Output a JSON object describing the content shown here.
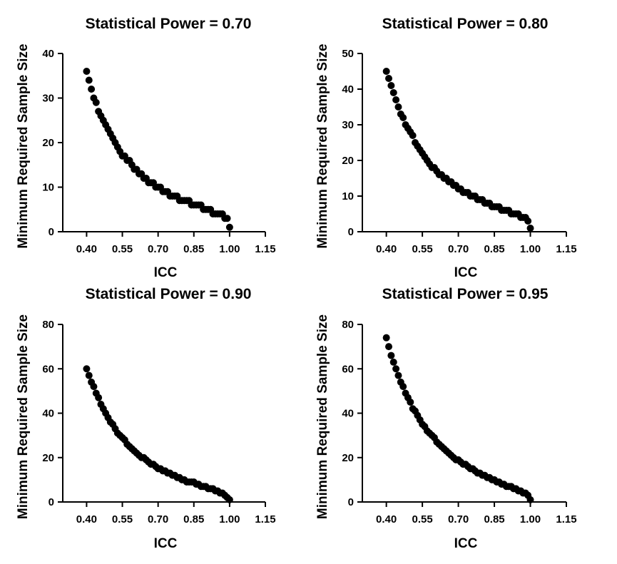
{
  "chart_data": [
    {
      "type": "scatter",
      "title": "Statistical Power = 0.70",
      "xlabel": "ICC",
      "ylabel": "Minimum Required Sample Size",
      "xlim": [
        0.3,
        1.15
      ],
      "ylim": [
        0,
        40
      ],
      "xticks": [
        "0.40",
        "0.55",
        "0.70",
        "0.85",
        "1.00",
        "1.15"
      ],
      "yticks": [
        "0",
        "10",
        "20",
        "30",
        "40"
      ],
      "x": [
        0.4,
        0.41,
        0.42,
        0.43,
        0.44,
        0.45,
        0.46,
        0.47,
        0.48,
        0.49,
        0.5,
        0.51,
        0.52,
        0.53,
        0.54,
        0.55,
        0.56,
        0.57,
        0.58,
        0.59,
        0.6,
        0.61,
        0.62,
        0.63,
        0.64,
        0.65,
        0.66,
        0.67,
        0.68,
        0.69,
        0.7,
        0.71,
        0.72,
        0.73,
        0.74,
        0.75,
        0.76,
        0.77,
        0.78,
        0.79,
        0.8,
        0.81,
        0.82,
        0.83,
        0.84,
        0.85,
        0.86,
        0.87,
        0.88,
        0.89,
        0.9,
        0.91,
        0.92,
        0.93,
        0.94,
        0.95,
        0.96,
        0.97,
        0.98,
        0.99,
        1.0
      ],
      "y": [
        36,
        34,
        32,
        30,
        29,
        27,
        26,
        25,
        24,
        23,
        22,
        21,
        20,
        19,
        18,
        17,
        17,
        16,
        16,
        15,
        14,
        14,
        13,
        13,
        12,
        12,
        11,
        11,
        11,
        10,
        10,
        10,
        9,
        9,
        9,
        8,
        8,
        8,
        8,
        7,
        7,
        7,
        7,
        7,
        6,
        6,
        6,
        6,
        6,
        5,
        5,
        5,
        5,
        4,
        4,
        4,
        4,
        4,
        3,
        3,
        1
      ]
    },
    {
      "type": "scatter",
      "title": "Statistical Power = 0.80",
      "xlabel": "ICC",
      "ylabel": "Minimum Required Sample Size",
      "xlim": [
        0.3,
        1.15
      ],
      "ylim": [
        0,
        50
      ],
      "xticks": [
        "0.40",
        "0.55",
        "0.70",
        "0.85",
        "1.00",
        "1.15"
      ],
      "yticks": [
        "0",
        "10",
        "20",
        "30",
        "40",
        "50"
      ],
      "x": [
        0.4,
        0.41,
        0.42,
        0.43,
        0.44,
        0.45,
        0.46,
        0.47,
        0.48,
        0.49,
        0.5,
        0.51,
        0.52,
        0.53,
        0.54,
        0.55,
        0.56,
        0.57,
        0.58,
        0.59,
        0.6,
        0.61,
        0.62,
        0.63,
        0.64,
        0.65,
        0.66,
        0.67,
        0.68,
        0.69,
        0.7,
        0.71,
        0.72,
        0.73,
        0.74,
        0.75,
        0.76,
        0.77,
        0.78,
        0.79,
        0.8,
        0.81,
        0.82,
        0.83,
        0.84,
        0.85,
        0.86,
        0.87,
        0.88,
        0.89,
        0.9,
        0.91,
        0.92,
        0.93,
        0.94,
        0.95,
        0.96,
        0.97,
        0.98,
        0.99,
        1.0
      ],
      "y": [
        45,
        43,
        41,
        39,
        37,
        35,
        33,
        32,
        30,
        29,
        28,
        27,
        25,
        24,
        23,
        22,
        21,
        20,
        19,
        18,
        18,
        17,
        16,
        16,
        15,
        15,
        14,
        14,
        13,
        13,
        12,
        12,
        11,
        11,
        11,
        10,
        10,
        10,
        9,
        9,
        9,
        8,
        8,
        8,
        7,
        7,
        7,
        7,
        6,
        6,
        6,
        6,
        5,
        5,
        5,
        5,
        4,
        4,
        4,
        3,
        1
      ]
    },
    {
      "type": "scatter",
      "title": "Statistical Power = 0.90",
      "xlabel": "ICC",
      "ylabel": "Minimum Required Sample Size",
      "xlim": [
        0.3,
        1.15
      ],
      "ylim": [
        0,
        80
      ],
      "xticks": [
        "0.40",
        "0.55",
        "0.70",
        "0.85",
        "1.00",
        "1.15"
      ],
      "yticks": [
        "0",
        "20",
        "40",
        "60",
        "80"
      ],
      "x": [
        0.4,
        0.41,
        0.42,
        0.43,
        0.44,
        0.45,
        0.46,
        0.47,
        0.48,
        0.49,
        0.5,
        0.51,
        0.52,
        0.53,
        0.54,
        0.55,
        0.56,
        0.57,
        0.58,
        0.59,
        0.6,
        0.61,
        0.62,
        0.63,
        0.64,
        0.65,
        0.66,
        0.67,
        0.68,
        0.69,
        0.7,
        0.71,
        0.72,
        0.73,
        0.74,
        0.75,
        0.76,
        0.77,
        0.78,
        0.79,
        0.8,
        0.81,
        0.82,
        0.83,
        0.84,
        0.85,
        0.86,
        0.87,
        0.88,
        0.89,
        0.9,
        0.91,
        0.92,
        0.93,
        0.94,
        0.95,
        0.96,
        0.97,
        0.98,
        0.99,
        1.0
      ],
      "y": [
        60,
        57,
        54,
        52,
        49,
        47,
        44,
        42,
        40,
        38,
        36,
        35,
        33,
        31,
        30,
        29,
        28,
        26,
        25,
        24,
        23,
        22,
        21,
        20,
        20,
        19,
        18,
        17,
        17,
        16,
        15,
        15,
        14,
        14,
        13,
        13,
        12,
        12,
        11,
        11,
        10,
        10,
        9,
        9,
        9,
        9,
        8,
        8,
        7,
        7,
        7,
        6,
        6,
        6,
        5,
        5,
        4,
        4,
        3,
        2,
        1
      ]
    },
    {
      "type": "scatter",
      "title": "Statistical Power = 0.95",
      "xlabel": "ICC",
      "ylabel": "Minimum Required Sample Size",
      "xlim": [
        0.3,
        1.15
      ],
      "ylim": [
        0,
        80
      ],
      "xticks": [
        "0.40",
        "0.55",
        "0.70",
        "0.85",
        "1.00",
        "1.15"
      ],
      "yticks": [
        "0",
        "20",
        "40",
        "60",
        "80"
      ],
      "x": [
        0.4,
        0.41,
        0.42,
        0.43,
        0.44,
        0.45,
        0.46,
        0.47,
        0.48,
        0.49,
        0.5,
        0.51,
        0.52,
        0.53,
        0.54,
        0.55,
        0.56,
        0.57,
        0.58,
        0.59,
        0.6,
        0.61,
        0.62,
        0.63,
        0.64,
        0.65,
        0.66,
        0.67,
        0.68,
        0.69,
        0.7,
        0.71,
        0.72,
        0.73,
        0.74,
        0.75,
        0.76,
        0.77,
        0.78,
        0.79,
        0.8,
        0.81,
        0.82,
        0.83,
        0.84,
        0.85,
        0.86,
        0.87,
        0.88,
        0.89,
        0.9,
        0.91,
        0.92,
        0.93,
        0.94,
        0.95,
        0.96,
        0.97,
        0.98,
        0.99,
        1.0
      ],
      "y": [
        74,
        70,
        66,
        63,
        60,
        57,
        54,
        52,
        49,
        47,
        45,
        42,
        41,
        39,
        37,
        35,
        34,
        32,
        31,
        30,
        29,
        27,
        26,
        25,
        24,
        23,
        22,
        21,
        20,
        19,
        19,
        18,
        17,
        17,
        16,
        15,
        15,
        14,
        13,
        13,
        12,
        12,
        11,
        11,
        10,
        10,
        9,
        9,
        8,
        8,
        7,
        7,
        7,
        6,
        6,
        5,
        5,
        4,
        4,
        3,
        1
      ]
    }
  ]
}
